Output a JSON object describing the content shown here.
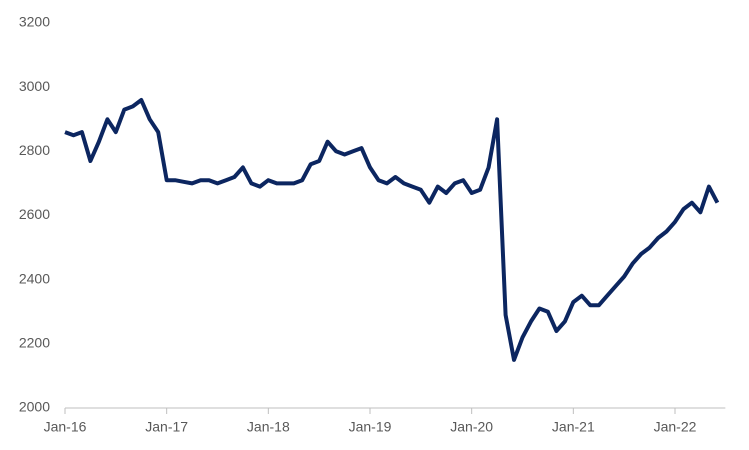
{
  "chart_data": {
    "type": "line",
    "categories": [
      "Jan-16",
      null,
      null,
      null,
      null,
      null,
      null,
      null,
      null,
      null,
      null,
      null,
      "Jan-17",
      null,
      null,
      null,
      null,
      null,
      null,
      null,
      null,
      null,
      null,
      null,
      "Jan-18",
      null,
      null,
      null,
      null,
      null,
      null,
      null,
      null,
      null,
      null,
      null,
      "Jan-19",
      null,
      null,
      null,
      null,
      null,
      null,
      null,
      null,
      null,
      null,
      null,
      "Jan-20",
      null,
      null,
      null,
      null,
      null,
      null,
      null,
      null,
      null,
      null,
      null,
      "Jan-21",
      null,
      null,
      null,
      null,
      null,
      null,
      null,
      null,
      null,
      null,
      null,
      "Jan-22",
      null,
      null,
      null,
      null,
      null
    ],
    "values": [
      2860,
      2850,
      2860,
      2770,
      2830,
      2900,
      2860,
      2930,
      2940,
      2960,
      2900,
      2860,
      2710,
      2710,
      2705,
      2700,
      2710,
      2710,
      2700,
      2710,
      2720,
      2750,
      2700,
      2690,
      2710,
      2700,
      2700,
      2700,
      2710,
      2760,
      2770,
      2830,
      2800,
      2790,
      2800,
      2810,
      2750,
      2710,
      2700,
      2720,
      2700,
      2690,
      2680,
      2640,
      2690,
      2670,
      2700,
      2710,
      2670,
      2680,
      2750,
      2900,
      2290,
      2150,
      2220,
      2270,
      2310,
      2300,
      2240,
      2270,
      2330,
      2350,
      2320,
      2320,
      2350,
      2380,
      2410,
      2450,
      2480,
      2500,
      2530,
      2550,
      2580,
      2620,
      2640,
      2610,
      2690,
      2640
    ],
    "color": "#0c2660",
    "ylim": [
      2000,
      3200
    ],
    "yticks": [
      2000,
      2200,
      2400,
      2600,
      2800,
      3000,
      3200
    ]
  }
}
